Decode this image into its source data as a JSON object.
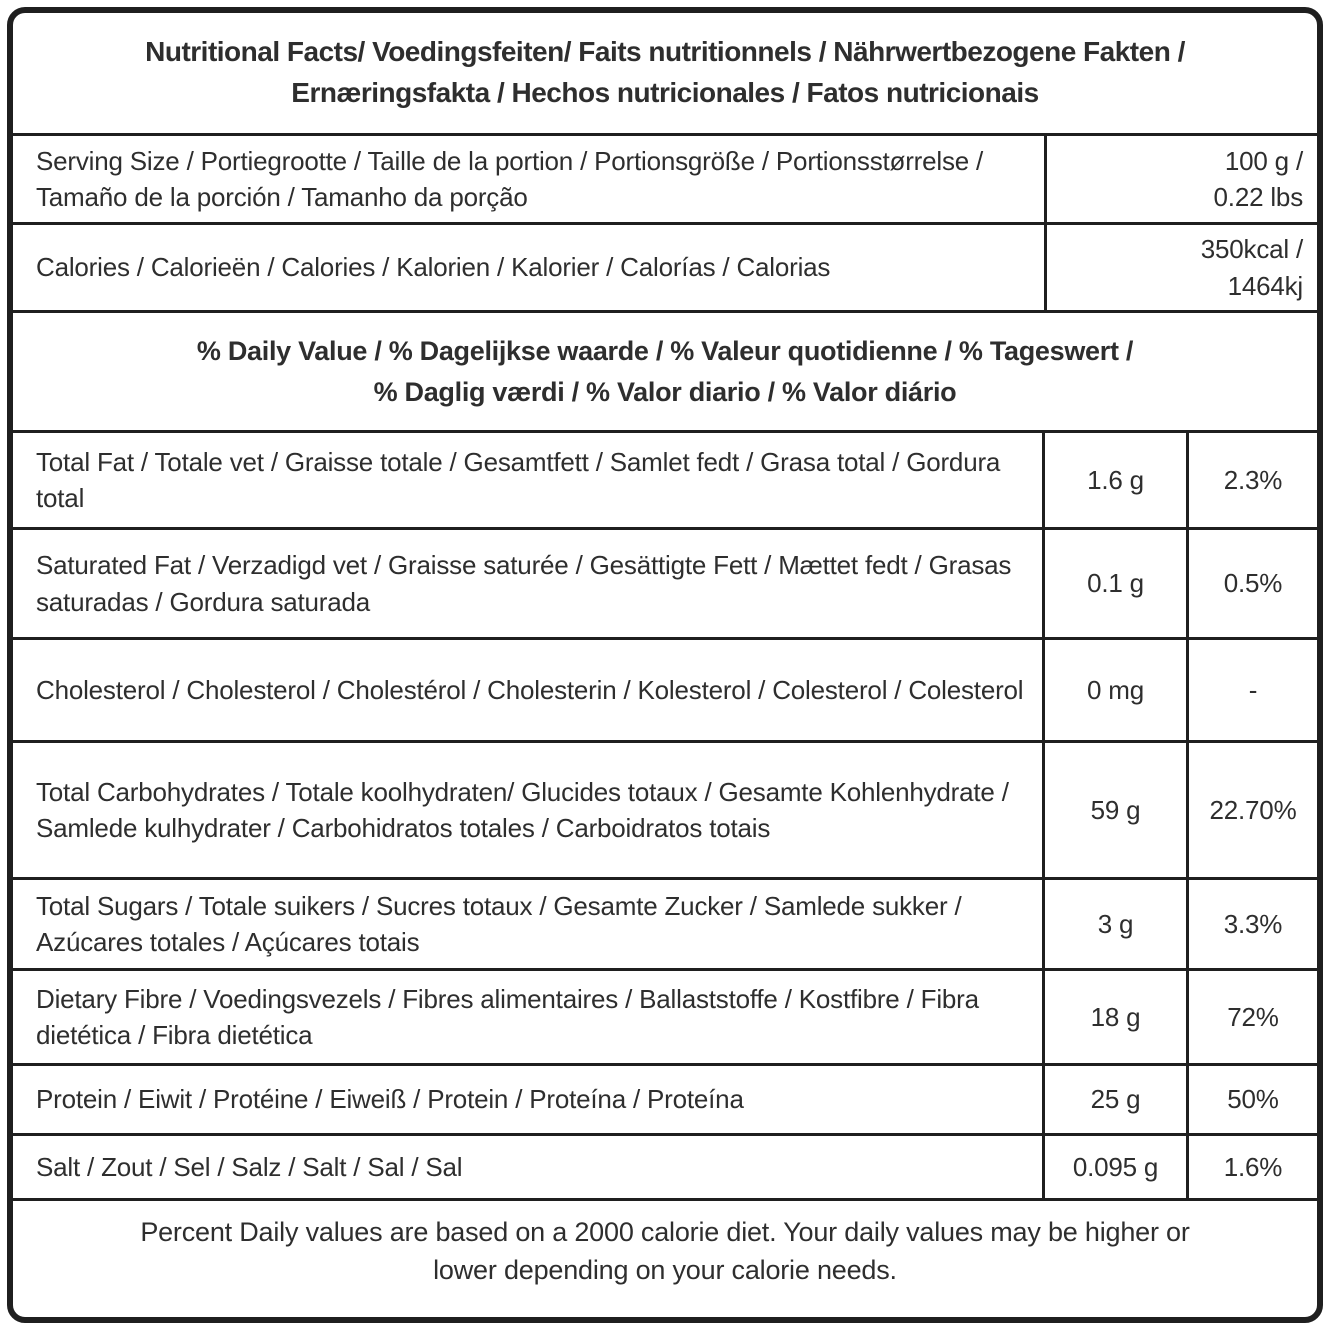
{
  "title": "Nutritional Facts/ Voedingsfeiten/ Faits nutritionnels / Nährwertbezogene Fakten /\nErnæringsfakta / Hechos nutricionales / Fatos nutricionais",
  "serving": {
    "label": "Serving Size / Portiegrootte / Taille de la portion / Portionsgröße / Portionsstørrelse / Tamaño de la porción / Tamanho da porção",
    "value": "100 g /\n0.22 lbs"
  },
  "calories": {
    "label": "Calories / Calorieën / Calories / Kalorien / Kalorier / Calorías / Calorias",
    "value": "350kcal /\n1464kj"
  },
  "daily_value_header": "% Daily Value / % Dagelijkse waarde / % Valeur quotidienne / % Tageswert /\n% Daglig værdi / % Valor diario / % Valor diário",
  "nutrients": [
    {
      "label": "Total Fat / Totale vet / Graisse totale / Gesamtfett / Samlet fedt / Grasa total / Gordura total",
      "amount": "1.6 g",
      "daily_value": "2.3%"
    },
    {
      "label": "Saturated Fat / Verzadigd vet / Graisse saturée / Gesättigte Fett / Mættet fedt / Grasas saturadas / Gordura saturada",
      "amount": "0.1 g",
      "daily_value": "0.5%"
    },
    {
      "label": "Cholesterol / Cholesterol  / Cholestérol / Cholesterin /  Kolesterol / Colesterol / Colesterol",
      "amount": "0 mg",
      "daily_value": "-"
    },
    {
      "label": "Total Carbohydrates / Totale koolhydraten/ Glucides totaux / Gesamte Kohlenhydrate / Samlede kulhydrater / Carbohidratos totales / Carboidratos totais",
      "amount": "59 g",
      "daily_value": "22.70%"
    },
    {
      "label": "Total Sugars / Totale suikers / Sucres totaux / Gesamte Zucker / Samlede sukker / Azúcares totales / Açúcares totais",
      "amount": "3 g",
      "daily_value": "3.3%"
    },
    {
      "label": "Dietary Fibre / Voedingsvezels / Fibres alimentaires / Ballaststoffe / Kostfibre / Fibra dietética / Fibra dietética",
      "amount": "18 g",
      "daily_value": "72%"
    },
    {
      "label": "Protein / Eiwit / Protéine / Eiweiß / Protein / Proteína / Proteína",
      "amount": "25 g",
      "daily_value": "50%"
    },
    {
      "label": "Salt / Zout / Sel / Salz / Salt / Sal / Sal",
      "amount": "0.095 g",
      "daily_value": "1.6%"
    }
  ],
  "footnote": "Percent Daily values are based on a 2000 calorie diet. Your daily values may be higher or\nlower depending on your calorie needs.",
  "colors": {
    "border": "#1f1f1f",
    "text": "#2e2e2e",
    "background": "#ffffff"
  }
}
